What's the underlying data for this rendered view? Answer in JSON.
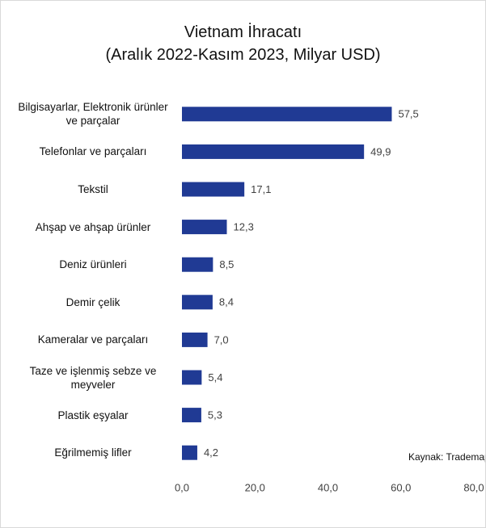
{
  "chart_data": {
    "type": "bar",
    "orientation": "horizontal",
    "title": "Vietnam İhracatı",
    "subtitle": "(Aralık 2022-Kasım 2023, Milyar USD)",
    "annotation": "Kaynak: Trademap",
    "categories": [
      "Bilgisayarlar, Elektronik ürünler ve parçalar",
      "Telefonlar ve parçaları",
      "Tekstil",
      "Ahşap ve ahşap ürünler",
      "Deniz ürünleri",
      "Demir çelik",
      "Kameralar ve parçaları",
      "Taze ve işlenmiş sebze ve meyveler",
      "Plastik eşyalar",
      "Eğrilmemiş lifler"
    ],
    "values": [
      57.5,
      49.9,
      17.1,
      12.3,
      8.5,
      8.4,
      7.0,
      5.4,
      5.3,
      4.2
    ],
    "value_labels": [
      "57,5",
      "49,9",
      "17,1",
      "12,3",
      "8,5",
      "8,4",
      "7,0",
      "5,4",
      "5,3",
      "4,2"
    ],
    "color": "#203a94",
    "xlim": [
      0,
      80
    ],
    "xticks": [
      {
        "value": 0,
        "label": "0,0"
      },
      {
        "value": 20,
        "label": "20,0"
      },
      {
        "value": 40,
        "label": "40,0"
      },
      {
        "value": 60,
        "label": "60,0"
      },
      {
        "value": 80,
        "label": "80,0"
      }
    ],
    "grid": false
  }
}
